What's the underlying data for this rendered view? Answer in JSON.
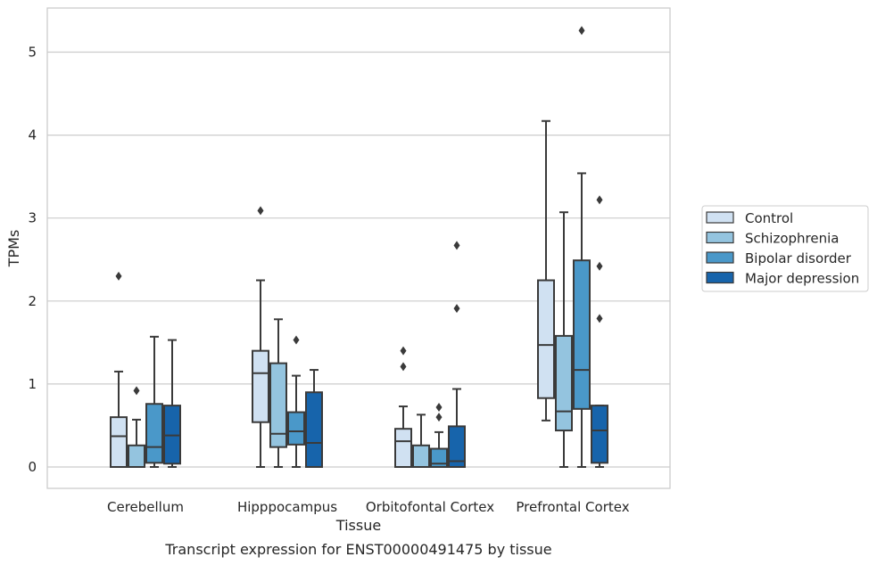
{
  "chart_data": {
    "type": "boxplot",
    "title": "",
    "caption": "Transcript expression for ENST00000491475 by tissue",
    "xlabel": "Tissue",
    "ylabel": "TPMs",
    "ylim": [
      -0.25,
      5.5
    ],
    "yticks": [
      0,
      1,
      2,
      3,
      4,
      5
    ],
    "ytick_labels": [
      "0",
      "1",
      "2",
      "3",
      "4",
      "5"
    ],
    "grid": "horizontal",
    "legend_position": "right",
    "categories": [
      "Cerebellum",
      "Hipppocampus",
      "Orbitofontal Cortex",
      "Prefrontal Cortex"
    ],
    "series": [
      {
        "name": "Control",
        "color": "#d0e1f2",
        "boxes": [
          {
            "whislo": 0.0,
            "q1": 0.0,
            "med": 0.37,
            "q3": 0.6,
            "whishi": 1.15,
            "fliers": [
              2.3
            ]
          },
          {
            "whislo": 0.0,
            "q1": 0.54,
            "med": 1.13,
            "q3": 1.4,
            "whishi": 2.25,
            "fliers": [
              3.09
            ]
          },
          {
            "whislo": 0.0,
            "q1": 0.0,
            "med": 0.31,
            "q3": 0.46,
            "whishi": 0.73,
            "fliers": [
              1.21,
              1.4
            ]
          },
          {
            "whislo": 0.56,
            "q1": 0.83,
            "med": 1.47,
            "q3": 2.25,
            "whishi": 4.17,
            "fliers": []
          }
        ]
      },
      {
        "name": "Schizophrenia",
        "color": "#94c4df",
        "boxes": [
          {
            "whislo": 0.0,
            "q1": 0.0,
            "med": 0.0,
            "q3": 0.26,
            "whishi": 0.57,
            "fliers": [
              0.92
            ]
          },
          {
            "whislo": 0.0,
            "q1": 0.24,
            "med": 0.4,
            "q3": 1.25,
            "whishi": 1.78,
            "fliers": []
          },
          {
            "whislo": 0.0,
            "q1": 0.0,
            "med": 0.0,
            "q3": 0.26,
            "whishi": 0.63,
            "fliers": []
          },
          {
            "whislo": 0.0,
            "q1": 0.44,
            "med": 0.67,
            "q3": 1.58,
            "whishi": 3.07,
            "fliers": []
          }
        ]
      },
      {
        "name": "Bipolar disorder",
        "color": "#4a98c9",
        "boxes": [
          {
            "whislo": 0.0,
            "q1": 0.05,
            "med": 0.24,
            "q3": 0.76,
            "whishi": 1.57,
            "fliers": []
          },
          {
            "whislo": 0.0,
            "q1": 0.27,
            "med": 0.43,
            "q3": 0.66,
            "whishi": 1.1,
            "fliers": [
              1.53
            ]
          },
          {
            "whislo": 0.0,
            "q1": 0.0,
            "med": 0.04,
            "q3": 0.22,
            "whishi": 0.42,
            "fliers": [
              0.6,
              0.72
            ]
          },
          {
            "whislo": 0.0,
            "q1": 0.7,
            "med": 1.17,
            "q3": 2.49,
            "whishi": 3.54,
            "fliers": [
              5.26
            ]
          }
        ]
      },
      {
        "name": "Major depression",
        "color": "#1764ab",
        "boxes": [
          {
            "whislo": 0.0,
            "q1": 0.04,
            "med": 0.38,
            "q3": 0.74,
            "whishi": 1.53,
            "fliers": []
          },
          {
            "whislo": 0.0,
            "q1": 0.0,
            "med": 0.29,
            "q3": 0.9,
            "whishi": 1.17,
            "fliers": []
          },
          {
            "whislo": 0.0,
            "q1": 0.0,
            "med": 0.07,
            "q3": 0.49,
            "whishi": 0.94,
            "fliers": [
              1.91,
              2.67
            ]
          },
          {
            "whislo": 0.0,
            "q1": 0.05,
            "med": 0.44,
            "q3": 0.74,
            "whishi": 0.74,
            "fliers": [
              1.79,
              2.42,
              3.22
            ]
          }
        ]
      }
    ]
  }
}
